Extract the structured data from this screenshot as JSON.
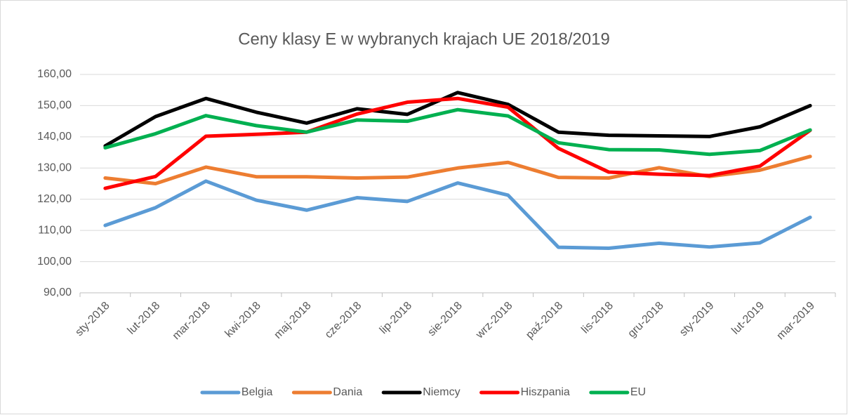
{
  "chart_data": {
    "type": "line",
    "title": "Ceny klasy E w wybranych krajach UE 2018/2019",
    "categories": [
      "sty-2018",
      "lut-2018",
      "mar-2018",
      "kwi-2018",
      "maj-2018",
      "cze-2018",
      "lip-2018",
      "sie-2018",
      "wrz-2018",
      "paź-2018",
      "lis-2018",
      "gru-2018",
      "sty-2019",
      "lut-2019",
      "mar-2019"
    ],
    "series": [
      {
        "name": "Belgia",
        "color": "#5b9bd5",
        "values": [
          111.6,
          117.3,
          125.8,
          119.7,
          116.5,
          120.5,
          119.3,
          125.2,
          121.3,
          104.6,
          104.3,
          105.9,
          104.7,
          106.0,
          114.2
        ]
      },
      {
        "name": "Dania",
        "color": "#ed7d31",
        "values": [
          126.8,
          125.0,
          130.3,
          127.2,
          127.2,
          126.8,
          127.1,
          130.0,
          131.8,
          127.0,
          126.8,
          130.1,
          127.3,
          129.3,
          133.7
        ]
      },
      {
        "name": "Niemcy",
        "color": "#000000",
        "values": [
          137.1,
          146.5,
          152.3,
          147.9,
          144.4,
          149.0,
          147.2,
          154.2,
          150.4,
          141.5,
          140.5,
          140.3,
          140.1,
          143.2,
          150.0
        ]
      },
      {
        "name": "Hiszpania",
        "color": "#ff0000",
        "values": [
          123.5,
          127.3,
          140.2,
          140.8,
          141.5,
          147.3,
          151.1,
          152.3,
          149.5,
          136.3,
          128.7,
          128.0,
          127.6,
          130.6,
          142.1
        ]
      },
      {
        "name": "EU",
        "color": "#00b050",
        "values": [
          136.5,
          141.0,
          146.8,
          143.6,
          141.5,
          145.4,
          145.0,
          148.7,
          146.7,
          138.1,
          135.9,
          135.8,
          134.4,
          135.6,
          142.2
        ]
      }
    ],
    "ylim": [
      90,
      160
    ],
    "yticks": [
      {
        "value": 90,
        "label": "90,00"
      },
      {
        "value": 100,
        "label": "100,00"
      },
      {
        "value": 110,
        "label": "110,00"
      },
      {
        "value": 120,
        "label": "120,00"
      },
      {
        "value": 130,
        "label": "130,00"
      },
      {
        "value": 140,
        "label": "140,00"
      },
      {
        "value": 150,
        "label": "150,00"
      },
      {
        "value": 160,
        "label": "160,00"
      }
    ],
    "grid": true,
    "legend": "bottom"
  }
}
